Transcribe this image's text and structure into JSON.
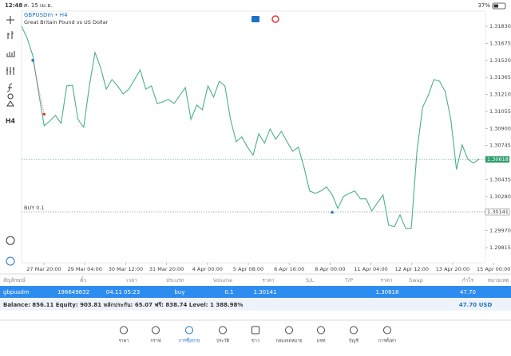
{
  "status_bar": {
    "time": "12:48",
    "date": "ศ. 15 เม.ย.",
    "battery": "37%"
  },
  "chart": {
    "type": "line",
    "symbol": "GBPUSDm • H4",
    "description": "Great Britain Pound vs US Dollar",
    "color": "#4caf8a",
    "values": [
      1.3183,
      1.31721,
      1.31562,
      1.31236,
      1.30925,
      1.30968,
      1.31019,
      1.30947,
      1.31287,
      1.31294,
      1.30983,
      1.30911,
      1.31287,
      1.31591,
      1.31454,
      1.31258,
      1.31345,
      1.31287,
      1.31215,
      1.31258,
      1.31345,
      1.31432,
      1.31258,
      1.31287,
      1.31128,
      1.31142,
      1.31164,
      1.31128,
      1.312,
      1.31273,
      1.30983,
      1.31113,
      1.3107,
      1.31287,
      1.31186,
      1.3133,
      1.31287,
      1.30983,
      1.3078,
      1.30824,
      1.3073,
      1.30657,
      1.30853,
      1.30766,
      1.30896,
      1.30802,
      1.30874,
      1.3078,
      1.30693,
      1.3073,
      1.30549,
      1.30331,
      1.3031,
      1.30331,
      1.30368,
      1.30295,
      1.30172,
      1.30281,
      1.3031,
      1.30331,
      1.30259,
      1.30259,
      1.3015,
      1.30223,
      1.30295,
      1.3002,
      1.30006,
      1.30114,
      1.29991,
      1.29991,
      1.30693,
      1.31092,
      1.312,
      1.31345,
      1.3133,
      1.31236,
      1.30983,
      1.30527,
      1.30751,
      1.30621,
      1.30585,
      1.30621
    ],
    "ylim": [
      1.29677,
      1.31968
    ],
    "yticks": [
      {
        "value": 1.3183,
        "label": "1.31830"
      },
      1.31675,
      {
        "value": 1.3152,
        "label": "1.31520"
      },
      1.31365,
      {
        "value": 1.3121,
        "label": "1.31210"
      },
      1.31055,
      {
        "value": 1.309,
        "label": "1.30900"
      },
      1.30745,
      1.30435,
      {
        "value": 1.3028,
        "label": "1.30280"
      },
      {
        "value": 1.2997,
        "label": "1.29970"
      },
      1.29815
    ],
    "xlabels": [
      "27 Mar 20:00",
      "29 Mar 04:00",
      "30 Mar 12:00",
      "31 Mar 20:00",
      "4 Apr 00:00",
      "5 Apr 08:00",
      "6 Apr 16:00",
      "8 Apr 00:00",
      "11 Apr 04:00",
      "12 Apr 12:00",
      "13 Apr 20:00",
      "15 Apr 00:00"
    ],
    "current_price": 1.30618,
    "order_line": {
      "label": "BUY 0.1",
      "price": 1.30141
    },
    "trade_markers": [
      {
        "x_index": 2,
        "price": 1.3152,
        "color": "#1e73c8"
      },
      {
        "x_index": 4,
        "price": 1.3103,
        "color": "#e53935"
      },
      {
        "x_index": 55,
        "price": 1.30141,
        "color": "#1e73c8"
      }
    ]
  },
  "table": {
    "headers": [
      "สัญลักษณ์",
      "ตั๋ว",
      "เวลา",
      "ประเภท",
      "Volume",
      "ราคา",
      "S/L",
      "T/P",
      "ราคา",
      "Swap",
      "กำไร",
      "หมายเหตุ"
    ],
    "row": {
      "symbol": "gbpusdm",
      "ticket": "196649832",
      "time": "04.11 05:23",
      "type": "buy",
      "volume": "0.1",
      "price": "1.30141",
      "current_price": "1.30618",
      "profit": "47.70"
    },
    "balance": "Balance: 856.11 Equity: 903.81 หลักประกัน: 65.07 ฟรี: 838.74 Level: 1 388.98%",
    "total_profit": "47.70",
    "currency": "USD"
  },
  "nav": [
    "ราคา",
    "กราฟ",
    "การซื้อขาย",
    "ประวัติ",
    "ข่าว",
    "กล่องจดหมาย",
    "แชท",
    "บัญชี",
    "การตั้งค่า"
  ]
}
